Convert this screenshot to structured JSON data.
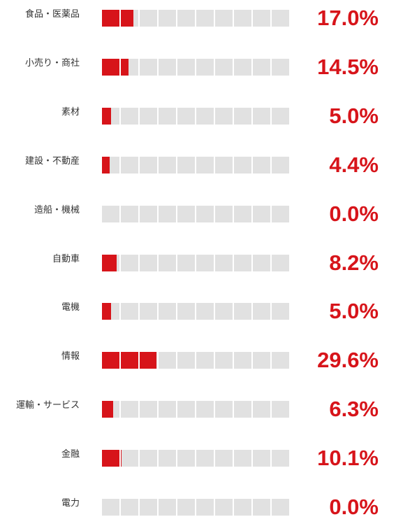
{
  "colors": {
    "filled": "#d7141a",
    "empty": "#e1e1e1",
    "value_text": "#d7141a",
    "label_text": "#333333"
  },
  "chart_data": {
    "type": "bar",
    "title": "",
    "xlabel": "",
    "ylabel": "",
    "xlim": [
      0,
      100
    ],
    "grid": false,
    "legend": "none",
    "categories": [
      "食品・医薬品",
      "小売り・商社",
      "素材",
      "建設・不動産",
      "造船・機械",
      "自動車",
      "電機",
      "情報",
      "運輸・サービス",
      "金融",
      "電力"
    ],
    "values": [
      17.0,
      14.5,
      5.0,
      4.4,
      0.0,
      8.2,
      5.0,
      29.6,
      6.3,
      10.1,
      0.0
    ],
    "value_labels": [
      "17.0%",
      "14.5%",
      "5.0%",
      "4.4%",
      "0.0%",
      "8.2%",
      "5.0%",
      "29.6%",
      "6.3%",
      "10.1%",
      "0.0%"
    ]
  }
}
